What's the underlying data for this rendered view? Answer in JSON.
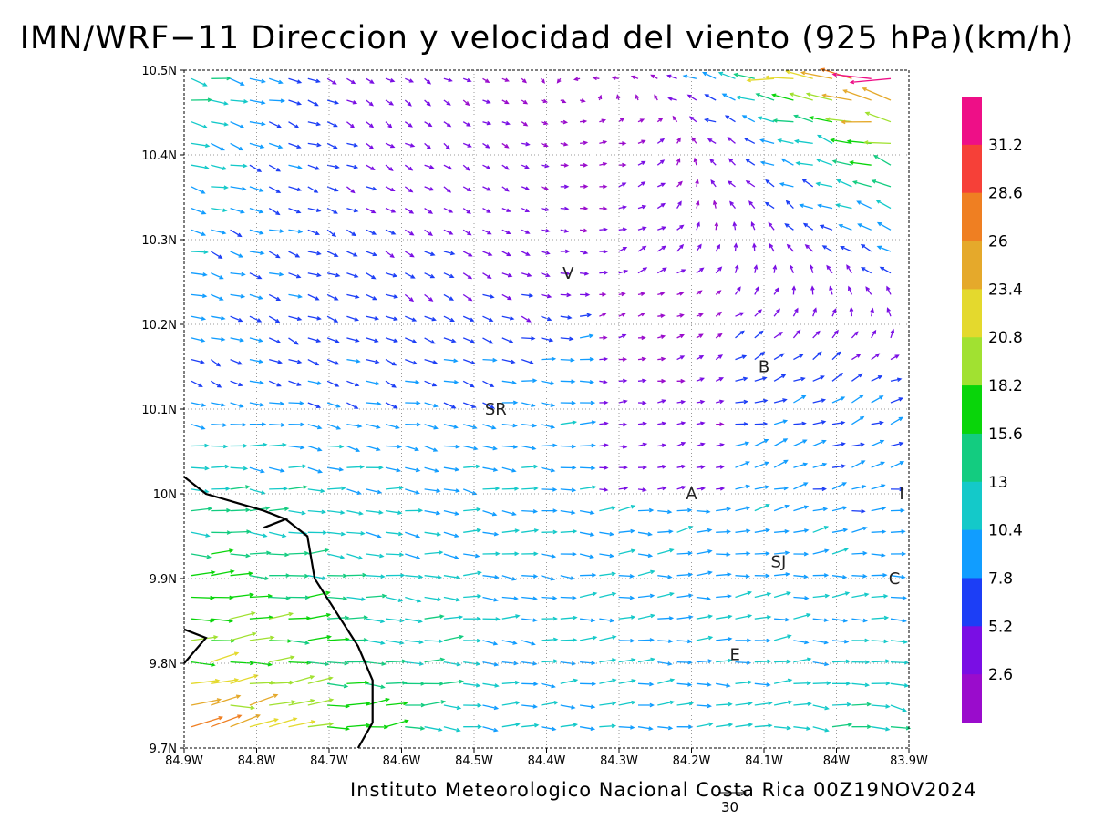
{
  "title": "IMN/WRF−11 Direccion y velocidad del viento (925 hPa)(km/h)",
  "footer": "Instituto Meteorologico Nacional Costa Rica 00Z19NOV2024",
  "reference_vector_label": "30",
  "chart_data": {
    "type": "vector-field",
    "x_ticks": [
      "84.9W",
      "84.8W",
      "84.7W",
      "84.6W",
      "84.5W",
      "84.4W",
      "84.3W",
      "84.2W",
      "84.1W",
      "84W",
      "83.9W"
    ],
    "y_ticks": [
      "10.5N",
      "10.4N",
      "10.3N",
      "10.2N",
      "10.1N",
      "10N",
      "9.9N",
      "9.8N",
      "9.7N"
    ],
    "xlim": [
      -84.9,
      -83.9
    ],
    "ylim": [
      9.7,
      10.5
    ],
    "grid": true,
    "colorbar": {
      "labels": [
        "31.2",
        "28.6",
        "26",
        "23.4",
        "20.8",
        "18.2",
        "15.6",
        "13",
        "10.4",
        "7.8",
        "5.2",
        "2.6"
      ],
      "colors": [
        "#ee0f87",
        "#f64038",
        "#ef7f22",
        "#e5a92b",
        "#e4d92d",
        "#a1e131",
        "#09d50a",
        "#13cc80",
        "#14c9c9",
        "#119dff",
        "#1c3ef6",
        "#7a0ee4",
        "#9a0ccc"
      ],
      "breaks": [
        2.6,
        5.2,
        7.8,
        10.4,
        13,
        15.6,
        18.2,
        20.8,
        23.4,
        26,
        28.6,
        31.2
      ]
    },
    "cities": [
      {
        "label": "V",
        "lon": -84.37,
        "lat": 10.26
      },
      {
        "label": "B",
        "lon": -84.1,
        "lat": 10.15
      },
      {
        "label": "SR",
        "lon": -84.47,
        "lat": 10.1
      },
      {
        "label": "A",
        "lon": -84.2,
        "lat": 10.0
      },
      {
        "label": "I",
        "lon": -83.91,
        "lat": 10.0
      },
      {
        "label": "SJ",
        "lon": -84.08,
        "lat": 9.92
      },
      {
        "label": "C",
        "lon": -83.92,
        "lat": 9.9
      },
      {
        "label": "E",
        "lon": -84.14,
        "lat": 9.81
      }
    ],
    "coastline": [
      [
        -84.9,
        10.02
      ],
      [
        -84.87,
        10.0
      ],
      [
        -84.83,
        9.99
      ],
      [
        -84.79,
        9.98
      ],
      [
        -84.76,
        9.97
      ],
      [
        -84.79,
        9.96
      ],
      [
        -84.76,
        9.97
      ],
      [
        -84.73,
        9.95
      ],
      [
        -84.72,
        9.9
      ],
      [
        -84.69,
        9.86
      ],
      [
        -84.66,
        9.82
      ],
      [
        -84.64,
        9.78
      ],
      [
        -84.64,
        9.73
      ],
      [
        -84.66,
        9.7
      ]
    ],
    "coastline_west": [
      [
        -84.9,
        9.84
      ],
      [
        -84.87,
        9.83
      ],
      [
        -84.9,
        9.8
      ]
    ]
  }
}
